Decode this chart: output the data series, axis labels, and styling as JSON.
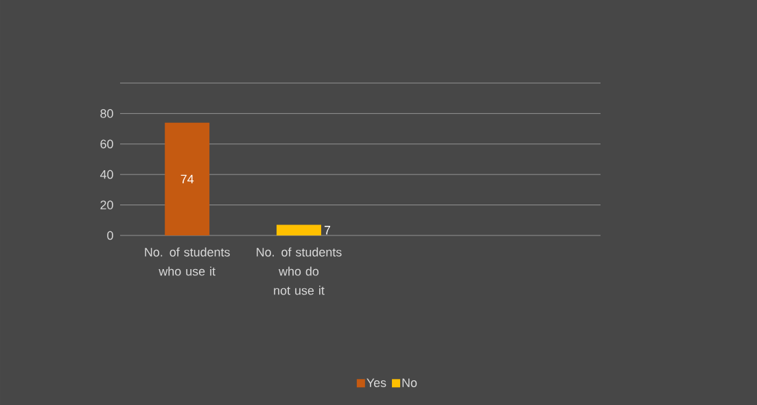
{
  "chart_data": {
    "type": "bar",
    "categories": [
      "No. of students who use it",
      "No. of students who do not use it"
    ],
    "series": [
      {
        "name": "Yes",
        "color": "#c55a11",
        "values": [
          74,
          null
        ]
      },
      {
        "name": "No",
        "color": "#ffc000",
        "values": [
          null,
          7
        ]
      }
    ],
    "ylim": [
      0,
      100
    ],
    "yticks": [
      0,
      20,
      40,
      60,
      80,
      {
        "value": 100,
        "label": null
      }
    ],
    "grid": "y",
    "legend": "bottom",
    "data_labels": true
  }
}
